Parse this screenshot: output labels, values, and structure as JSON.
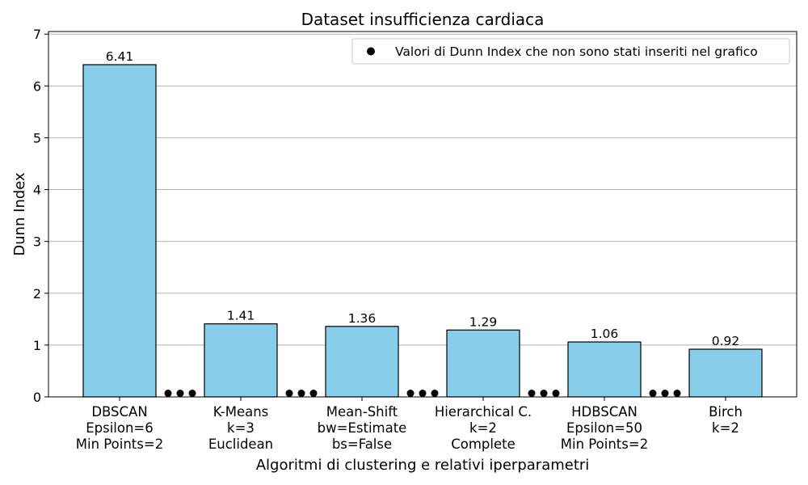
{
  "chart_data": {
    "type": "bar",
    "title": "Dataset insufficienza cardiaca",
    "xlabel": "Algoritmi di clustering e relativi iperparametri",
    "ylabel": "Dunn Index",
    "ylim": [
      0,
      7.05
    ],
    "yticks": [
      "0",
      "1",
      "2",
      "3",
      "4",
      "5",
      "6",
      "7"
    ],
    "grid": "horizontal",
    "bar_color": "#87ceeb",
    "bar_edge_color": "#000000",
    "categories": [
      {
        "lines": [
          "DBSCAN",
          "Epsilon=6",
          "Min Points=2"
        ]
      },
      {
        "lines": [
          "K-Means",
          "k=3",
          "Euclidean"
        ]
      },
      {
        "lines": [
          "Mean-Shift",
          "bw=Estimate",
          "bs=False"
        ]
      },
      {
        "lines": [
          "Hierarchical C.",
          "k=2",
          "Complete"
        ]
      },
      {
        "lines": [
          "HDBSCAN",
          "Epsilon=50",
          "Min Points=2"
        ]
      },
      {
        "lines": [
          "Birch",
          "k=2"
        ]
      }
    ],
    "values": [
      6.41,
      1.41,
      1.36,
      1.29,
      1.06,
      0.92
    ],
    "value_labels": [
      "6.41",
      "1.41",
      "1.36",
      "1.29",
      "1.06",
      "0.92"
    ],
    "omitted_markers_value": 0.07,
    "legend": {
      "position": "top-right",
      "entries": [
        {
          "marker": "dot",
          "color": "#000000",
          "label": "Valori di Dunn Index che non sono stati inseriti nel grafico"
        }
      ]
    }
  }
}
